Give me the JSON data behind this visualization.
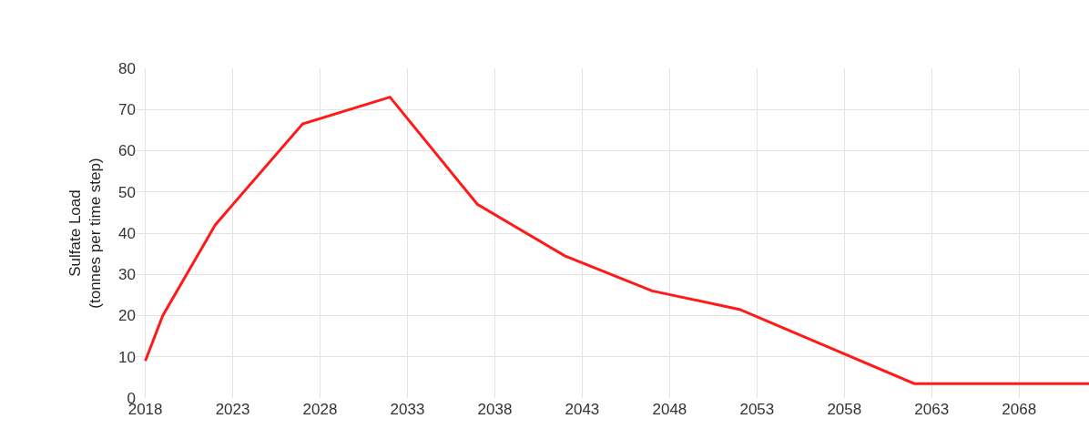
{
  "chart_data": {
    "type": "line",
    "ylabel": "Sulfate Load\n(tonnes per time step)",
    "x": [
      2018,
      2019,
      2022,
      2027,
      2032,
      2037,
      2042,
      2047,
      2052,
      2062,
      2072
    ],
    "series": [
      {
        "color": "#ff1a1a",
        "values": [
          9,
          20,
          42,
          66.5,
          73,
          47,
          34.5,
          26,
          21.5,
          3.5,
          3.5
        ]
      }
    ],
    "xlim": [
      2017.5,
      2072
    ],
    "xticks": [
      2018,
      2023,
      2028,
      2033,
      2038,
      2043,
      2048,
      2053,
      2058,
      2063,
      2068
    ],
    "ylim": [
      0,
      80
    ],
    "yticks": [
      0,
      10,
      20,
      30,
      40,
      50,
      60,
      70,
      80
    ],
    "grid": true,
    "marker": "none",
    "line_style": "solid"
  }
}
